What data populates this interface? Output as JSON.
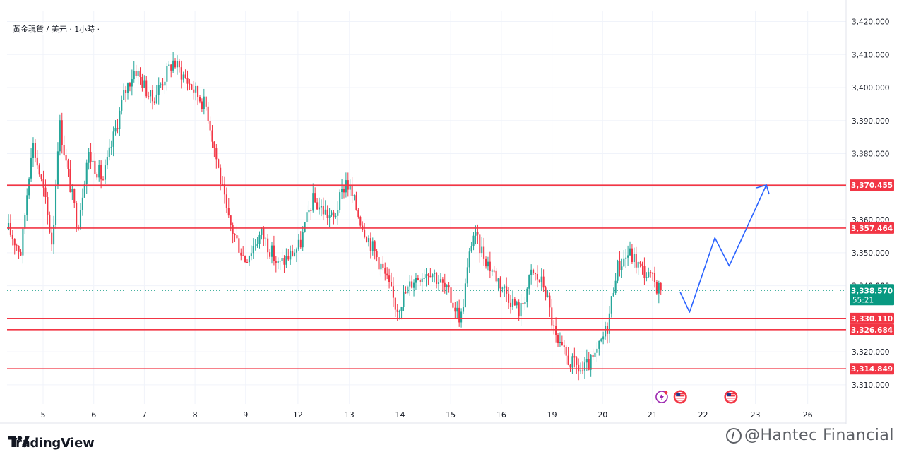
{
  "symbol_label": "黃金現貨 / 美元 · 1小時 ·",
  "branding": {
    "logo_text": "TradingView",
    "watermark_text": "@Hantec Financial"
  },
  "colors": {
    "up": "#26a69a",
    "down": "#f23645",
    "level": "#f23645",
    "projection": "#2962ff",
    "current": "#089981",
    "grid": "#f0f3fa"
  },
  "chart_data": {
    "type": "candlestick",
    "title": "",
    "xlabel": "",
    "ylabel": "",
    "ylim": [
      3304.2,
      3423.1
    ],
    "y_ticks": [
      {
        "value": 3310,
        "label": "3,310.000"
      },
      {
        "value": 3320,
        "label": "3,320.000"
      },
      {
        "value": 3330,
        "label": "3,330.000"
      },
      {
        "value": 3340,
        "label": "3,340.000"
      },
      {
        "value": 3350,
        "label": "3,350.000"
      },
      {
        "value": 3360,
        "label": "3,360.000"
      },
      {
        "value": 3370,
        "label": "3,370.000"
      },
      {
        "value": 3380,
        "label": "3,380.000"
      },
      {
        "value": 3390,
        "label": "3,390.000"
      },
      {
        "value": 3400,
        "label": "3,400.000"
      },
      {
        "value": 3410,
        "label": "3,410.000"
      },
      {
        "value": 3420,
        "label": "3,420.000"
      }
    ],
    "x_ticks": [
      "5",
      "6",
      "7",
      "8",
      "9",
      "12",
      "13",
      "14",
      "15",
      "16",
      "19",
      "20",
      "21",
      "22",
      "23",
      "26"
    ],
    "horizontal_levels": [
      {
        "value": 3370.455,
        "label": "3,370.455"
      },
      {
        "value": 3357.464,
        "label": "3,357.464"
      },
      {
        "value": 3330.11,
        "label": "3,330.110"
      },
      {
        "value": 3326.684,
        "label": "3,326.684"
      },
      {
        "value": 3314.849,
        "label": "3,314.849"
      }
    ],
    "current_price": {
      "value": 3338.57,
      "label": "3,338.570",
      "countdown": "55:21"
    },
    "price_path": [
      [
        0,
        3357
      ],
      [
        1.5,
        3350
      ],
      [
        2.8,
        3384
      ],
      [
        4.2,
        3368
      ],
      [
        5.2,
        3352
      ],
      [
        6.0,
        3390
      ],
      [
        6.9,
        3376
      ],
      [
        8.2,
        3358
      ],
      [
        9.4,
        3380
      ],
      [
        11.2,
        3372
      ],
      [
        13.7,
        3398
      ],
      [
        15.0,
        3406
      ],
      [
        17.0,
        3396
      ],
      [
        19.5,
        3408
      ],
      [
        21.2,
        3402
      ],
      [
        23.5,
        3394
      ],
      [
        26.0,
        3360
      ],
      [
        28.0,
        3348
      ],
      [
        30.0,
        3356
      ],
      [
        32.0,
        3346
      ],
      [
        34.5,
        3352
      ],
      [
        36.0,
        3366
      ],
      [
        38.5,
        3360
      ],
      [
        40.0,
        3372
      ],
      [
        42.0,
        3358
      ],
      [
        44.5,
        3344
      ],
      [
        46.0,
        3333
      ],
      [
        48.0,
        3342
      ],
      [
        50.0,
        3345
      ],
      [
        52.0,
        3338
      ],
      [
        53.6,
        3330
      ],
      [
        55.0,
        3356
      ],
      [
        57.0,
        3346
      ],
      [
        59.5,
        3336
      ],
      [
        60.6,
        3332
      ],
      [
        62.0,
        3344
      ],
      [
        63.5,
        3340
      ],
      [
        65.0,
        3322
      ],
      [
        66.5,
        3317
      ],
      [
        68.0,
        3314
      ],
      [
        69.5,
        3318
      ],
      [
        71.0,
        3328
      ],
      [
        72.0,
        3345
      ],
      [
        73.5,
        3350
      ],
      [
        75.0,
        3345
      ],
      [
        76.5,
        3341
      ],
      [
        77.3,
        3338.57
      ]
    ],
    "projection_path": [
      [
        79.6,
        3338
      ],
      [
        80.7,
        3332
      ],
      [
        83.7,
        3354.5
      ],
      [
        85.4,
        3346
      ],
      [
        89.8,
        3370.5
      ]
    ],
    "event_icons": [
      {
        "position": 77.4,
        "name": "earnings"
      },
      {
        "position": 79.6,
        "name": "us-flag"
      },
      {
        "position": 85.6,
        "name": "us-flag"
      }
    ]
  }
}
